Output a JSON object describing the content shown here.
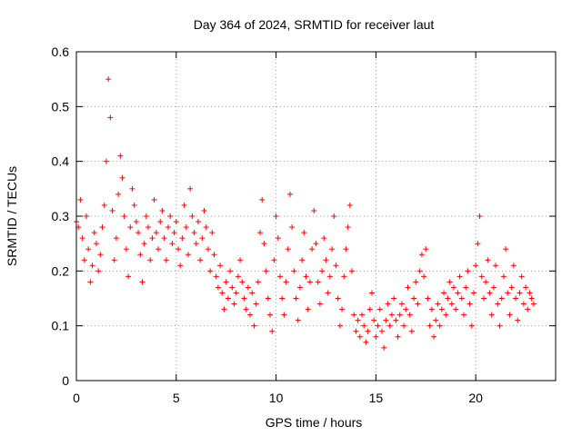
{
  "chart_data": {
    "type": "scatter",
    "title": "Day 364 of 2024, SRMTID for receiver laut",
    "xlabel": "GPS time / hours",
    "ylabel": "SRMTID / TECUs",
    "xlim": [
      0,
      24
    ],
    "ylim": [
      0,
      0.6
    ],
    "xticks": [
      0,
      5,
      10,
      15,
      20
    ],
    "xtick_labels": [
      "0",
      "5",
      "10",
      "15",
      "20"
    ],
    "yticks": [
      0,
      0.1,
      0.2,
      0.3,
      0.4,
      0.5,
      0.6
    ],
    "ytick_labels": [
      "0",
      "0.1",
      "0.2",
      "0.3",
      "0.4",
      "0.5",
      "0.6"
    ],
    "grid": true,
    "marker": "+",
    "color": "#ff0000",
    "series": [
      {
        "name": "SRMTID",
        "points": [
          [
            0.0,
            0.29
          ],
          [
            0.1,
            0.28
          ],
          [
            0.2,
            0.33
          ],
          [
            0.3,
            0.26
          ],
          [
            0.4,
            0.22
          ],
          [
            0.5,
            0.3
          ],
          [
            0.6,
            0.24
          ],
          [
            0.7,
            0.18
          ],
          [
            0.8,
            0.21
          ],
          [
            0.9,
            0.27
          ],
          [
            1.0,
            0.25
          ],
          [
            1.1,
            0.2
          ],
          [
            1.2,
            0.23
          ],
          [
            1.3,
            0.28
          ],
          [
            1.4,
            0.32
          ],
          [
            1.5,
            0.4
          ],
          [
            1.6,
            0.55
          ],
          [
            1.7,
            0.48
          ],
          [
            1.8,
            0.31
          ],
          [
            1.9,
            0.22
          ],
          [
            2.0,
            0.26
          ],
          [
            2.1,
            0.34
          ],
          [
            2.2,
            0.41
          ],
          [
            2.3,
            0.37
          ],
          [
            2.4,
            0.3
          ],
          [
            2.5,
            0.24
          ],
          [
            2.6,
            0.19
          ],
          [
            2.7,
            0.28
          ],
          [
            2.8,
            0.35
          ],
          [
            2.9,
            0.32
          ],
          [
            3.0,
            0.29
          ],
          [
            3.1,
            0.27
          ],
          [
            3.2,
            0.23
          ],
          [
            3.3,
            0.18
          ],
          [
            3.4,
            0.25
          ],
          [
            3.5,
            0.3
          ],
          [
            3.6,
            0.28
          ],
          [
            3.7,
            0.22
          ],
          [
            3.8,
            0.26
          ],
          [
            3.9,
            0.33
          ],
          [
            4.0,
            0.27
          ],
          [
            4.1,
            0.24
          ],
          [
            4.2,
            0.29
          ],
          [
            4.3,
            0.31
          ],
          [
            4.4,
            0.26
          ],
          [
            4.5,
            0.22
          ],
          [
            4.6,
            0.28
          ],
          [
            4.7,
            0.3
          ],
          [
            4.8,
            0.25
          ],
          [
            4.9,
            0.27
          ],
          [
            5.0,
            0.29
          ],
          [
            5.1,
            0.24
          ],
          [
            5.2,
            0.21
          ],
          [
            5.3,
            0.26
          ],
          [
            5.4,
            0.32
          ],
          [
            5.5,
            0.28
          ],
          [
            5.6,
            0.23
          ],
          [
            5.7,
            0.35
          ],
          [
            5.8,
            0.3
          ],
          [
            5.9,
            0.27
          ],
          [
            6.0,
            0.25
          ],
          [
            6.1,
            0.29
          ],
          [
            6.2,
            0.22
          ],
          [
            6.3,
            0.26
          ],
          [
            6.4,
            0.31
          ],
          [
            6.5,
            0.28
          ],
          [
            6.6,
            0.24
          ],
          [
            6.7,
            0.2
          ],
          [
            6.8,
            0.27
          ],
          [
            6.9,
            0.23
          ],
          [
            7.0,
            0.19
          ],
          [
            7.1,
            0.17
          ],
          [
            7.2,
            0.21
          ],
          [
            7.3,
            0.16
          ],
          [
            7.4,
            0.13
          ],
          [
            7.5,
            0.18
          ],
          [
            7.6,
            0.15
          ],
          [
            7.7,
            0.2
          ],
          [
            7.8,
            0.17
          ],
          [
            7.9,
            0.14
          ],
          [
            8.0,
            0.16
          ],
          [
            8.1,
            0.19
          ],
          [
            8.2,
            0.22
          ],
          [
            8.3,
            0.18
          ],
          [
            8.4,
            0.15
          ],
          [
            8.5,
            0.13
          ],
          [
            8.6,
            0.17
          ],
          [
            8.7,
            0.12
          ],
          [
            8.8,
            0.16
          ],
          [
            8.9,
            0.1
          ],
          [
            9.0,
            0.14
          ],
          [
            9.1,
            0.18
          ],
          [
            9.2,
            0.27
          ],
          [
            9.3,
            0.33
          ],
          [
            9.4,
            0.25
          ],
          [
            9.5,
            0.2
          ],
          [
            9.6,
            0.15
          ],
          [
            9.7,
            0.12
          ],
          [
            9.8,
            0.09
          ],
          [
            9.9,
            0.22
          ],
          [
            10.0,
            0.3
          ],
          [
            10.1,
            0.26
          ],
          [
            10.2,
            0.19
          ],
          [
            10.3,
            0.15
          ],
          [
            10.4,
            0.12
          ],
          [
            10.5,
            0.18
          ],
          [
            10.6,
            0.24
          ],
          [
            10.7,
            0.34
          ],
          [
            10.8,
            0.28
          ],
          [
            10.9,
            0.2
          ],
          [
            11.0,
            0.15
          ],
          [
            11.1,
            0.11
          ],
          [
            11.2,
            0.17
          ],
          [
            11.3,
            0.22
          ],
          [
            11.4,
            0.27
          ],
          [
            11.5,
            0.19
          ],
          [
            11.6,
            0.13
          ],
          [
            11.7,
            0.18
          ],
          [
            11.8,
            0.24
          ],
          [
            11.9,
            0.31
          ],
          [
            12.0,
            0.25
          ],
          [
            12.1,
            0.18
          ],
          [
            12.2,
            0.14
          ],
          [
            12.3,
            0.2
          ],
          [
            12.4,
            0.26
          ],
          [
            12.5,
            0.22
          ],
          [
            12.6,
            0.16
          ],
          [
            12.7,
            0.19
          ],
          [
            12.8,
            0.24
          ],
          [
            12.9,
            0.3
          ],
          [
            13.0,
            0.21
          ],
          [
            13.1,
            0.15
          ],
          [
            13.2,
            0.1
          ],
          [
            13.3,
            0.13
          ],
          [
            13.4,
            0.19
          ],
          [
            13.5,
            0.24
          ],
          [
            13.6,
            0.28
          ],
          [
            13.7,
            0.32
          ],
          [
            13.8,
            0.2
          ],
          [
            13.9,
            0.12
          ],
          [
            14.0,
            0.09
          ],
          [
            14.1,
            0.11
          ],
          [
            14.2,
            0.08
          ],
          [
            14.3,
            0.12
          ],
          [
            14.4,
            0.1
          ],
          [
            14.5,
            0.07
          ],
          [
            14.6,
            0.09
          ],
          [
            14.7,
            0.13
          ],
          [
            14.8,
            0.16
          ],
          [
            14.9,
            0.11
          ],
          [
            15.0,
            0.08
          ],
          [
            15.1,
            0.1
          ],
          [
            15.2,
            0.13
          ],
          [
            15.3,
            0.09
          ],
          [
            15.4,
            0.06
          ],
          [
            15.5,
            0.11
          ],
          [
            15.6,
            0.14
          ],
          [
            15.7,
            0.1
          ],
          [
            15.8,
            0.12
          ],
          [
            15.9,
            0.15
          ],
          [
            16.0,
            0.11
          ],
          [
            16.1,
            0.08
          ],
          [
            16.2,
            0.12
          ],
          [
            16.3,
            0.14
          ],
          [
            16.4,
            0.1
          ],
          [
            16.5,
            0.13
          ],
          [
            16.6,
            0.17
          ],
          [
            16.7,
            0.12
          ],
          [
            16.8,
            0.09
          ],
          [
            16.9,
            0.15
          ],
          [
            17.0,
            0.18
          ],
          [
            17.1,
            0.14
          ],
          [
            17.2,
            0.2
          ],
          [
            17.3,
            0.23
          ],
          [
            17.4,
            0.19
          ],
          [
            17.5,
            0.24
          ],
          [
            17.6,
            0.15
          ],
          [
            17.7,
            0.1
          ],
          [
            17.8,
            0.13
          ],
          [
            17.9,
            0.08
          ],
          [
            18.0,
            0.11
          ],
          [
            18.1,
            0.14
          ],
          [
            18.2,
            0.1
          ],
          [
            18.3,
            0.13
          ],
          [
            18.4,
            0.16
          ],
          [
            18.5,
            0.12
          ],
          [
            18.6,
            0.15
          ],
          [
            18.7,
            0.18
          ],
          [
            18.8,
            0.14
          ],
          [
            18.9,
            0.17
          ],
          [
            19.0,
            0.13
          ],
          [
            19.1,
            0.16
          ],
          [
            19.2,
            0.19
          ],
          [
            19.3,
            0.15
          ],
          [
            19.4,
            0.12
          ],
          [
            19.5,
            0.17
          ],
          [
            19.6,
            0.2
          ],
          [
            19.7,
            0.14
          ],
          [
            19.8,
            0.1
          ],
          [
            19.9,
            0.16
          ],
          [
            20.0,
            0.21
          ],
          [
            20.1,
            0.25
          ],
          [
            20.2,
            0.3
          ],
          [
            20.3,
            0.19
          ],
          [
            20.4,
            0.15
          ],
          [
            20.5,
            0.18
          ],
          [
            20.6,
            0.22
          ],
          [
            20.7,
            0.16
          ],
          [
            20.8,
            0.12
          ],
          [
            20.9,
            0.17
          ],
          [
            21.0,
            0.21
          ],
          [
            21.1,
            0.14
          ],
          [
            21.2,
            0.1
          ],
          [
            21.3,
            0.15
          ],
          [
            21.4,
            0.19
          ],
          [
            21.5,
            0.24
          ],
          [
            21.6,
            0.16
          ],
          [
            21.7,
            0.12
          ],
          [
            21.8,
            0.17
          ],
          [
            21.9,
            0.21
          ],
          [
            22.0,
            0.15
          ],
          [
            22.1,
            0.11
          ],
          [
            22.2,
            0.16
          ],
          [
            22.3,
            0.19
          ],
          [
            22.4,
            0.14
          ],
          [
            22.5,
            0.17
          ],
          [
            22.6,
            0.13
          ],
          [
            22.7,
            0.16
          ],
          [
            22.8,
            0.15
          ],
          [
            22.9,
            0.14
          ]
        ]
      }
    ]
  }
}
